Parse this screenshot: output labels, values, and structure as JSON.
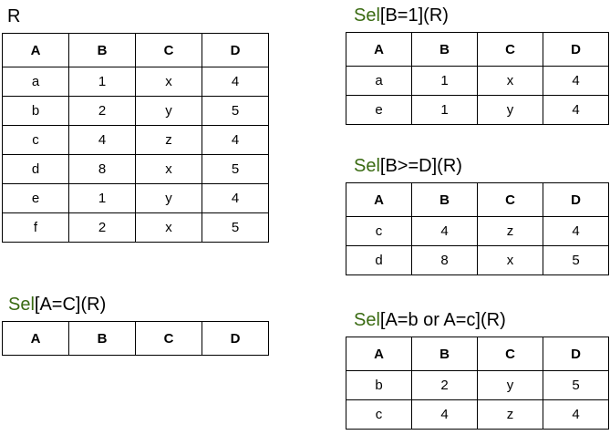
{
  "relations": [
    {
      "id": "R",
      "title_keyword": "",
      "title_rest": "R",
      "columns": [
        "A",
        "B",
        "C",
        "D"
      ],
      "rows": [
        [
          "a",
          "1",
          "x",
          "4"
        ],
        [
          "b",
          "2",
          "y",
          "5"
        ],
        [
          "c",
          "4",
          "z",
          "4"
        ],
        [
          "d",
          "8",
          "x",
          "5"
        ],
        [
          "e",
          "1",
          "y",
          "4"
        ],
        [
          "f",
          "2",
          "x",
          "5"
        ]
      ]
    },
    {
      "id": "sel-a-eq-c",
      "title_keyword": "Sel",
      "title_rest": "[A=C](R)",
      "columns": [
        "A",
        "B",
        "C",
        "D"
      ],
      "rows": []
    },
    {
      "id": "sel-b-eq-1",
      "title_keyword": "Sel",
      "title_rest": "[B=1](R)",
      "columns": [
        "A",
        "B",
        "C",
        "D"
      ],
      "rows": [
        [
          "a",
          "1",
          "x",
          "4"
        ],
        [
          "e",
          "1",
          "y",
          "4"
        ]
      ]
    },
    {
      "id": "sel-b-ge-d",
      "title_keyword": "Sel",
      "title_rest": "[B>=D](R)",
      "columns": [
        "A",
        "B",
        "C",
        "D"
      ],
      "rows": [
        [
          "c",
          "4",
          "z",
          "4"
        ],
        [
          "d",
          "8",
          "x",
          "5"
        ]
      ]
    },
    {
      "id": "sel-a-eq-b-or-c",
      "title_keyword": "Sel",
      "title_rest": "[A=b or A=c](R)",
      "columns": [
        "A",
        "B",
        "C",
        "D"
      ],
      "rows": [
        [
          "b",
          "2",
          "y",
          "5"
        ],
        [
          "c",
          "4",
          "z",
          "4"
        ]
      ]
    }
  ],
  "colors": {
    "keyword": "#3a6b12",
    "border": "#000000",
    "text": "#000000"
  }
}
